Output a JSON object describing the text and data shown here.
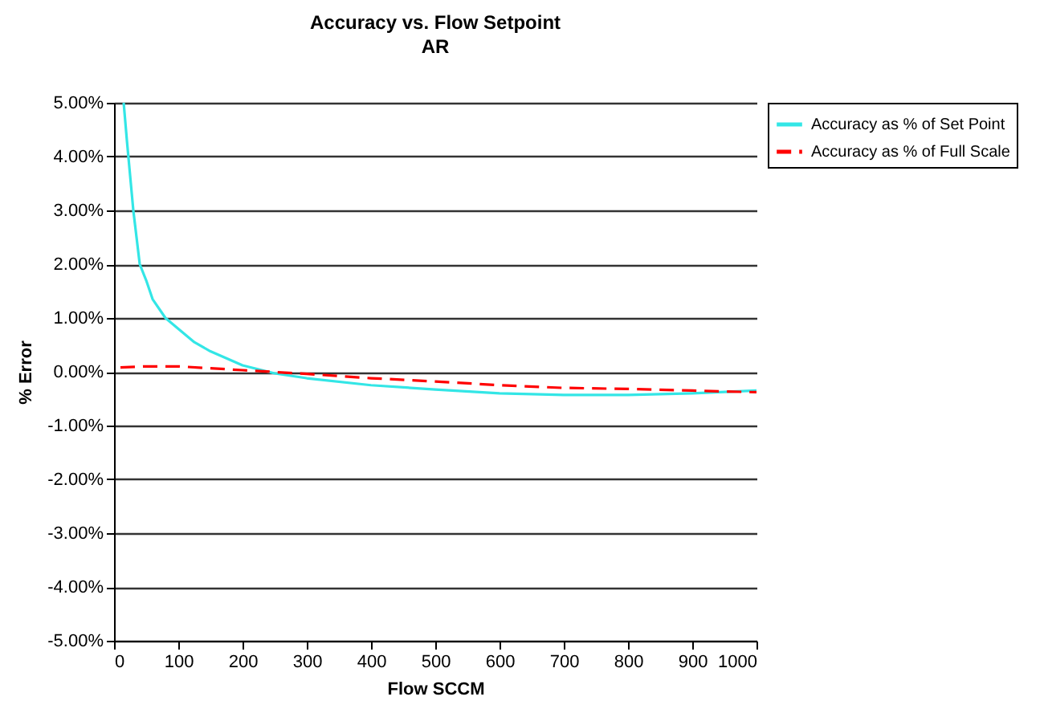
{
  "chart_data": {
    "type": "line",
    "title": "Accuracy vs. Flow Setpoint",
    "subtitle": "AR",
    "xlabel": "Flow SCCM",
    "ylabel": "% Error",
    "xlim": [
      0,
      1000
    ],
    "xticks": [
      0,
      100,
      200,
      300,
      400,
      500,
      600,
      700,
      800,
      900,
      1000
    ],
    "ylim": [
      -5,
      5
    ],
    "yticks": [
      {
        "value": 5,
        "label": "5.00%"
      },
      {
        "value": 4,
        "label": "4.00%"
      },
      {
        "value": 3,
        "label": "3.00%"
      },
      {
        "value": 2,
        "label": "2.00%"
      },
      {
        "value": 1,
        "label": "1.00%"
      },
      {
        "value": 0,
        "label": "0.00%"
      },
      {
        "value": -1,
        "label": "-1.00%"
      },
      {
        "value": -2,
        "label": "-2.00%"
      },
      {
        "value": -3,
        "label": "-3.00%"
      },
      {
        "value": -4,
        "label": "-4.00%"
      },
      {
        "value": -5,
        "label": "-5.00%"
      }
    ],
    "grid": "y",
    "legend": "right",
    "marker": "none",
    "series": [
      {
        "name": "Accuracy as % of Set Point",
        "color": "#33e6e6",
        "line_style": "solid",
        "x": [
          15,
          20,
          30,
          40,
          50,
          60,
          80,
          100,
          125,
          150,
          200,
          250,
          300,
          400,
          500,
          600,
          700,
          800,
          900,
          1000
        ],
        "values": [
          5.0,
          4.3,
          3.0,
          2.0,
          1.7,
          1.35,
          1.0,
          0.8,
          0.55,
          0.38,
          0.12,
          -0.03,
          -0.12,
          -0.25,
          -0.33,
          -0.4,
          -0.43,
          -0.43,
          -0.4,
          -0.35
        ]
      },
      {
        "name": "Accuracy as % of Full Scale",
        "color": "#ff0000",
        "line_style": "dashed",
        "x": [
          10,
          50,
          100,
          200,
          300,
          400,
          500,
          600,
          700,
          800,
          900,
          1000
        ],
        "values": [
          0.08,
          0.1,
          0.1,
          0.03,
          -0.04,
          -0.12,
          -0.18,
          -0.25,
          -0.3,
          -0.32,
          -0.35,
          -0.38
        ]
      }
    ]
  }
}
